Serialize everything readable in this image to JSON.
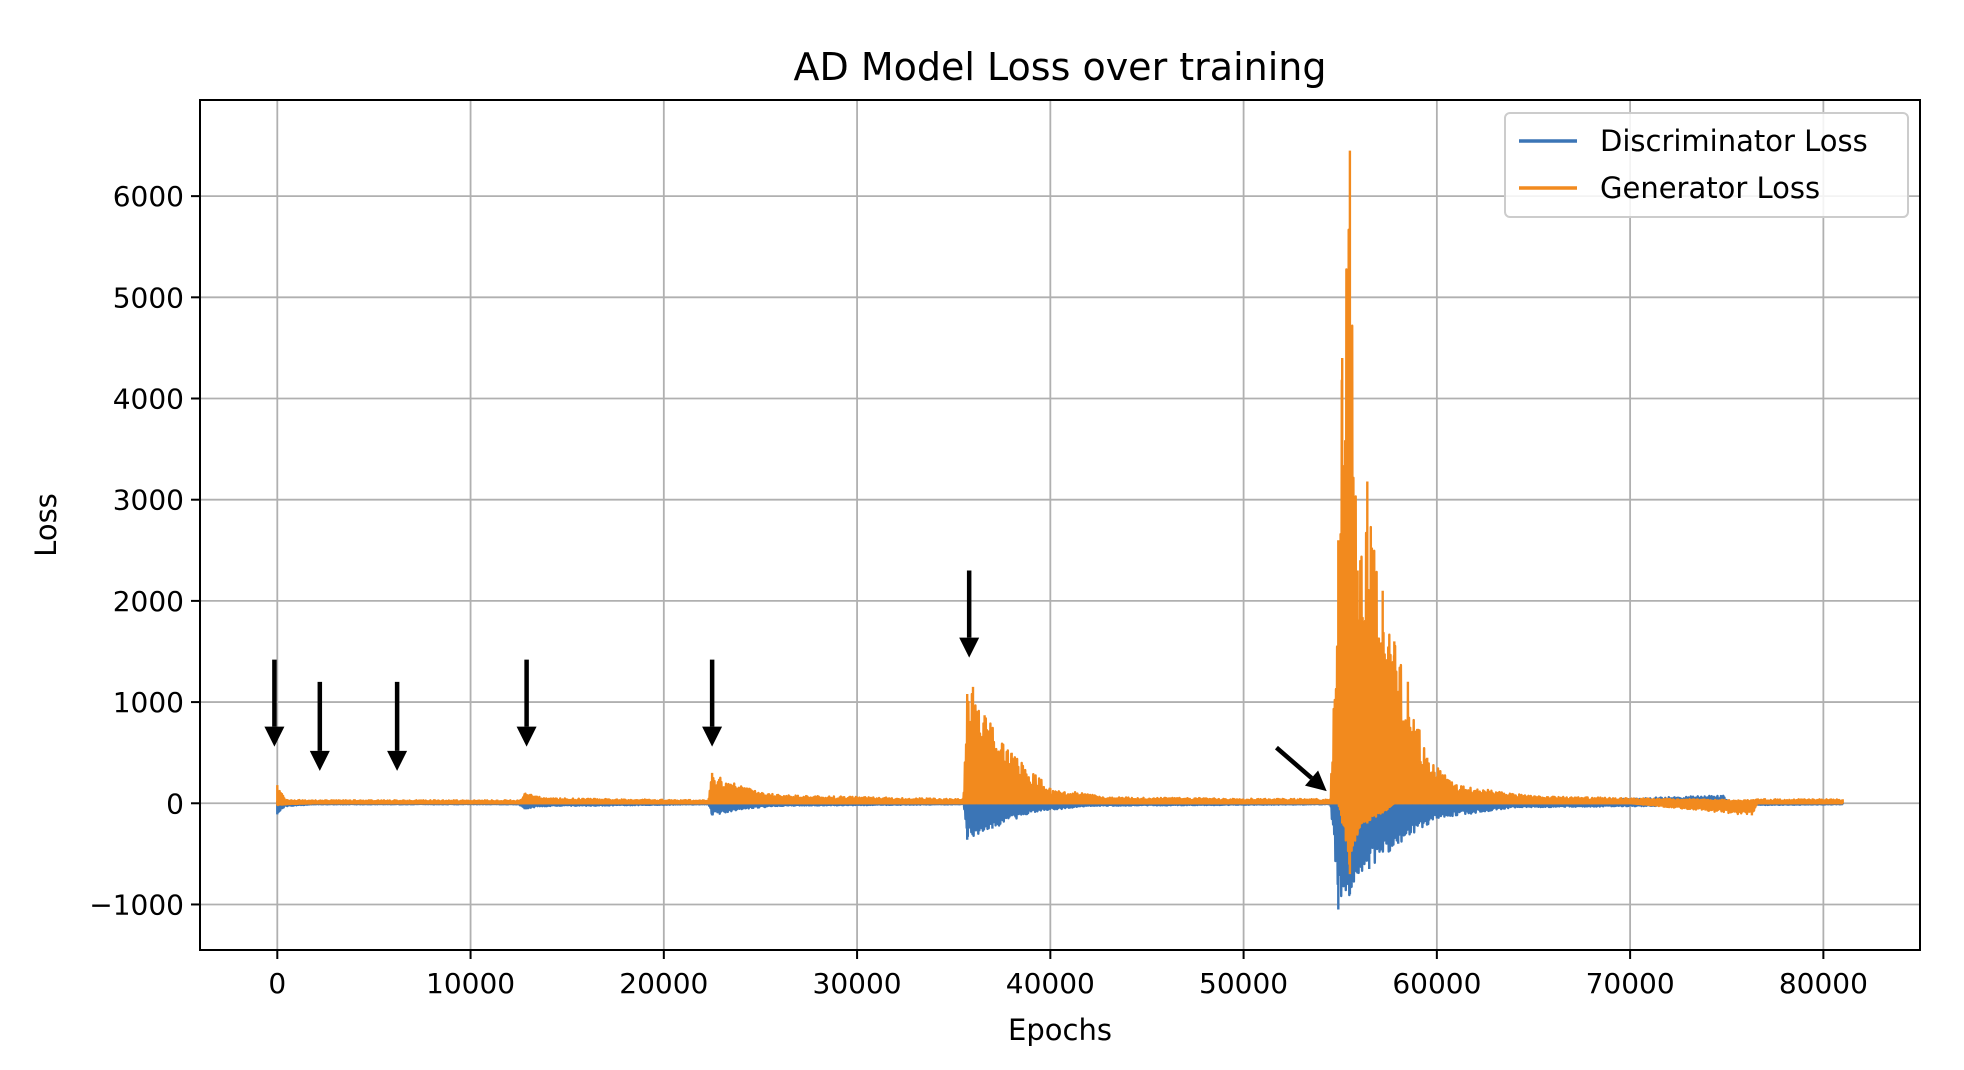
{
  "chart_data": {
    "type": "line",
    "title": "AD Model Loss over training",
    "xlabel": "Epochs",
    "ylabel": "Loss",
    "xlim": [
      -4000,
      85000
    ],
    "ylim": [
      -1450,
      6950
    ],
    "xticks": [
      0,
      10000,
      20000,
      30000,
      40000,
      50000,
      60000,
      70000,
      80000
    ],
    "yticks": [
      -1000,
      0,
      1000,
      2000,
      3000,
      4000,
      5000,
      6000
    ],
    "grid": true,
    "legend_position": "top-right",
    "colors": {
      "discriminator": "#3b75b6",
      "generator": "#f28a1e",
      "arrows": "#000000"
    },
    "series": [
      {
        "name": "Discriminator Loss",
        "envelope": [
          {
            "x": 0,
            "hi": 20,
            "lo": -110
          },
          {
            "x": 400,
            "hi": 10,
            "lo": -30
          },
          {
            "x": 2000,
            "hi": 5,
            "lo": -10
          },
          {
            "x": 12500,
            "hi": 5,
            "lo": -10
          },
          {
            "x": 12800,
            "hi": 5,
            "lo": -60
          },
          {
            "x": 13500,
            "hi": 5,
            "lo": -30
          },
          {
            "x": 22300,
            "hi": 5,
            "lo": -10
          },
          {
            "x": 22500,
            "hi": 5,
            "lo": -120
          },
          {
            "x": 24000,
            "hi": 5,
            "lo": -60
          },
          {
            "x": 26000,
            "hi": 5,
            "lo": -25
          },
          {
            "x": 35500,
            "hi": 5,
            "lo": -10
          },
          {
            "x": 35700,
            "hi": 5,
            "lo": -360
          },
          {
            "x": 37000,
            "hi": 5,
            "lo": -250
          },
          {
            "x": 39000,
            "hi": 5,
            "lo": -90
          },
          {
            "x": 42000,
            "hi": 5,
            "lo": -25
          },
          {
            "x": 54500,
            "hi": 5,
            "lo": -10
          },
          {
            "x": 54900,
            "hi": 5,
            "lo": -1050
          },
          {
            "x": 55500,
            "hi": 5,
            "lo": -900
          },
          {
            "x": 56500,
            "hi": 5,
            "lo": -650
          },
          {
            "x": 58000,
            "hi": 5,
            "lo": -400
          },
          {
            "x": 60000,
            "hi": 5,
            "lo": -150
          },
          {
            "x": 64000,
            "hi": 5,
            "lo": -40
          },
          {
            "x": 74800,
            "hi": 80,
            "lo": -20
          },
          {
            "x": 75200,
            "hi": 10,
            "lo": -20
          },
          {
            "x": 81000,
            "hi": 5,
            "lo": -10
          }
        ]
      },
      {
        "name": "Generator Loss",
        "envelope": [
          {
            "x": 0,
            "hi": 180,
            "lo": -20
          },
          {
            "x": 400,
            "hi": 40,
            "lo": -10
          },
          {
            "x": 2000,
            "hi": 30,
            "lo": 0
          },
          {
            "x": 6000,
            "hi": 30,
            "lo": 0
          },
          {
            "x": 12500,
            "hi": 30,
            "lo": 0
          },
          {
            "x": 12800,
            "hi": 100,
            "lo": 0
          },
          {
            "x": 14000,
            "hi": 50,
            "lo": 0
          },
          {
            "x": 22300,
            "hi": 30,
            "lo": 0
          },
          {
            "x": 22500,
            "hi": 300,
            "lo": 0
          },
          {
            "x": 24000,
            "hi": 170,
            "lo": 0
          },
          {
            "x": 26000,
            "hi": 80,
            "lo": 0
          },
          {
            "x": 35500,
            "hi": 40,
            "lo": 0
          },
          {
            "x": 35700,
            "hi": 1080,
            "lo": 0
          },
          {
            "x": 36000,
            "hi": 1150,
            "lo": 0
          },
          {
            "x": 36600,
            "hi": 870,
            "lo": 0
          },
          {
            "x": 38000,
            "hi": 500,
            "lo": 0
          },
          {
            "x": 40000,
            "hi": 150,
            "lo": 0
          },
          {
            "x": 43000,
            "hi": 60,
            "lo": 0
          },
          {
            "x": 54500,
            "hi": 40,
            "lo": 0
          },
          {
            "x": 54900,
            "hi": 2600,
            "lo": 0
          },
          {
            "x": 55100,
            "hi": 4400,
            "lo": -200
          },
          {
            "x": 55500,
            "hi": 6450,
            "lo": -700
          },
          {
            "x": 55900,
            "hi": 2300,
            "lo": -300
          },
          {
            "x": 56400,
            "hi": 3180,
            "lo": -200
          },
          {
            "x": 57200,
            "hi": 2100,
            "lo": -100
          },
          {
            "x": 57800,
            "hi": 1600,
            "lo": 0
          },
          {
            "x": 58500,
            "hi": 1200,
            "lo": 0
          },
          {
            "x": 59500,
            "hi": 450,
            "lo": 0
          },
          {
            "x": 61000,
            "hi": 180,
            "lo": 0
          },
          {
            "x": 65000,
            "hi": 70,
            "lo": 0
          },
          {
            "x": 70000,
            "hi": 50,
            "lo": 0
          },
          {
            "x": 76300,
            "hi": 30,
            "lo": -120
          },
          {
            "x": 76600,
            "hi": 40,
            "lo": 0
          },
          {
            "x": 81000,
            "hi": 40,
            "lo": 0
          }
        ]
      }
    ],
    "annotations": [
      {
        "type": "arrow",
        "direction": "down",
        "x": -150,
        "y_start": 1420,
        "y_end": 560
      },
      {
        "type": "arrow",
        "direction": "down",
        "x": 2200,
        "y_start": 1200,
        "y_end": 320
      },
      {
        "type": "arrow",
        "direction": "down",
        "x": 6200,
        "y_start": 1200,
        "y_end": 320
      },
      {
        "type": "arrow",
        "direction": "down",
        "x": 12900,
        "y_start": 1420,
        "y_end": 560
      },
      {
        "type": "arrow",
        "direction": "down",
        "x": 22500,
        "y_start": 1420,
        "y_end": 560
      },
      {
        "type": "arrow",
        "direction": "down",
        "x": 35800,
        "y_start": 2300,
        "y_end": 1440
      },
      {
        "type": "arrow",
        "direction": "down-right",
        "x_start": 51700,
        "y_start": 550,
        "x_end": 54300,
        "y_end": 120
      }
    ]
  }
}
